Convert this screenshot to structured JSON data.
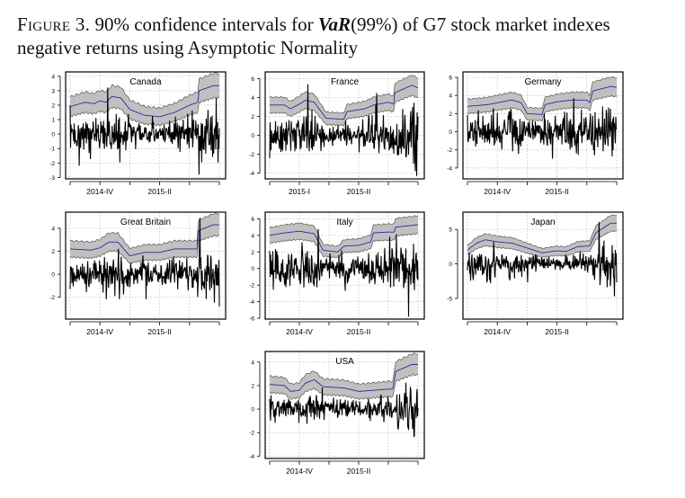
{
  "caption": {
    "figure_label": "Figure 3.",
    "text_before": "90% confidence intervals for ",
    "var_label": "VaR",
    "text_after": "(99%) of G7 stock market indexes negative returns using Asymptotic Normality"
  },
  "colors": {
    "band": "#c0c0c0",
    "band_edge": "#555555",
    "var_line": "#2b2b9e",
    "returns": "#000000",
    "grid": "#bbbbbb"
  },
  "chart_data": [
    {
      "type": "line",
      "title": "Canada",
      "ylim": [
        -3.1,
        4.3
      ],
      "yticks": [
        -3,
        -2,
        -1,
        0,
        1,
        2,
        3,
        4
      ],
      "xticks": [
        0,
        1,
        2,
        3,
        4,
        5
      ],
      "xtick_labels": [
        "",
        "2014-IV",
        "",
        "2015-II",
        "",
        ""
      ],
      "var": [
        [
          0,
          1.9
        ],
        [
          0.5,
          2.2
        ],
        [
          0.8,
          2.1
        ],
        [
          1.0,
          2.3
        ],
        [
          1.2,
          2.2
        ],
        [
          1.4,
          2.6
        ],
        [
          1.7,
          2.5
        ],
        [
          2.0,
          1.7
        ],
        [
          2.5,
          1.3
        ],
        [
          3.0,
          1.2
        ],
        [
          3.5,
          1.5
        ],
        [
          4.0,
          2.0
        ],
        [
          4.28,
          2.2
        ],
        [
          4.32,
          3.0
        ],
        [
          4.8,
          3.35
        ],
        [
          5,
          3.35
        ]
      ]
    },
    {
      "type": "line",
      "title": "France",
      "ylim": [
        -4.6,
        6.7
      ],
      "yticks": [
        -4,
        -2,
        0,
        2,
        4,
        6
      ],
      "xticks": [
        0,
        1,
        2,
        3,
        4,
        5
      ],
      "xtick_labels": [
        "",
        "2015-I",
        "",
        "2015-II",
        "",
        ""
      ],
      "var": [
        [
          0,
          3.2
        ],
        [
          0.5,
          3.2
        ],
        [
          0.7,
          2.8
        ],
        [
          1.0,
          3.3
        ],
        [
          1.2,
          3.7
        ],
        [
          1.5,
          3.5
        ],
        [
          1.9,
          1.8
        ],
        [
          2.5,
          1.7
        ],
        [
          2.6,
          2.5
        ],
        [
          3.2,
          2.8
        ],
        [
          3.5,
          3.2
        ],
        [
          4.0,
          3.5
        ],
        [
          4.18,
          3.3
        ],
        [
          4.22,
          4.5
        ],
        [
          4.8,
          5.3
        ],
        [
          5,
          5.0
        ]
      ]
    },
    {
      "type": "line",
      "title": "Germany",
      "ylim": [
        -5.2,
        6.6
      ],
      "yticks": [
        -4,
        -2,
        0,
        2,
        4,
        6
      ],
      "xticks": [
        0,
        1,
        2,
        3,
        4,
        5
      ],
      "xtick_labels": [
        "",
        "2014-IV",
        "",
        "2015-II",
        "",
        ""
      ],
      "var": [
        [
          0,
          2.8
        ],
        [
          0.7,
          3.0
        ],
        [
          1.0,
          3.2
        ],
        [
          1.5,
          3.5
        ],
        [
          1.8,
          3.2
        ],
        [
          2.0,
          2.0
        ],
        [
          2.5,
          1.9
        ],
        [
          2.6,
          3.0
        ],
        [
          3.0,
          3.3
        ],
        [
          3.5,
          3.5
        ],
        [
          4.0,
          3.5
        ],
        [
          4.1,
          3.2
        ],
        [
          4.2,
          4.5
        ],
        [
          4.8,
          5.0
        ],
        [
          5,
          4.9
        ]
      ]
    },
    {
      "type": "line",
      "title": "Great Britain",
      "ylim": [
        -3.9,
        5.4
      ],
      "yticks": [
        -2,
        0,
        2,
        4
      ],
      "xticks": [
        0,
        1,
        2,
        3,
        4,
        5
      ],
      "xtick_labels": [
        "",
        "2014-IV",
        "",
        "2015-II",
        "",
        ""
      ],
      "var": [
        [
          0,
          2.2
        ],
        [
          0.7,
          2.1
        ],
        [
          1.0,
          2.3
        ],
        [
          1.3,
          2.8
        ],
        [
          1.6,
          2.8
        ],
        [
          2.0,
          1.6
        ],
        [
          2.5,
          1.9
        ],
        [
          3.0,
          1.9
        ],
        [
          3.5,
          2.2
        ],
        [
          4.0,
          2.2
        ],
        [
          4.25,
          2.2
        ],
        [
          4.3,
          3.8
        ],
        [
          4.8,
          4.3
        ],
        [
          5,
          4.3
        ]
      ]
    },
    {
      "type": "line",
      "title": "Italy",
      "ylim": [
        -6.1,
        6.8
      ],
      "yticks": [
        -6,
        -4,
        -2,
        0,
        2,
        4,
        6
      ],
      "xticks": [
        0,
        1,
        2,
        3,
        4,
        5
      ],
      "xtick_labels": [
        "",
        "2014-IV",
        "",
        "2015-II",
        "",
        ""
      ],
      "var": [
        [
          0,
          4.0
        ],
        [
          0.5,
          4.3
        ],
        [
          1.0,
          4.5
        ],
        [
          1.5,
          4.2
        ],
        [
          1.8,
          2.2
        ],
        [
          2.3,
          2.0
        ],
        [
          2.5,
          2.7
        ],
        [
          3.0,
          2.8
        ],
        [
          3.4,
          3.2
        ],
        [
          3.5,
          4.3
        ],
        [
          4.0,
          4.4
        ],
        [
          4.2,
          4.4
        ],
        [
          4.25,
          5.0
        ],
        [
          4.8,
          5.2
        ],
        [
          5,
          5.3
        ]
      ]
    },
    {
      "type": "line",
      "title": "Japan",
      "ylim": [
        -8.0,
        7.5
      ],
      "yticks": [
        -5,
        0,
        5
      ],
      "xticks": [
        0,
        1,
        2,
        3,
        4,
        5
      ],
      "xtick_labels": [
        "",
        "2014-IV",
        "",
        "2015-II",
        "",
        ""
      ],
      "var": [
        [
          0,
          2.0
        ],
        [
          0.3,
          3.0
        ],
        [
          0.6,
          3.5
        ],
        [
          1.0,
          3.2
        ],
        [
          1.5,
          3.0
        ],
        [
          2.0,
          2.3
        ],
        [
          2.5,
          1.6
        ],
        [
          3.0,
          1.9
        ],
        [
          3.3,
          1.8
        ],
        [
          3.7,
          2.5
        ],
        [
          4.1,
          2.6
        ],
        [
          4.3,
          4.5
        ],
        [
          4.8,
          5.9
        ],
        [
          5,
          5.9
        ]
      ]
    },
    {
      "type": "line",
      "title": "USA",
      "ylim": [
        -4.2,
        4.9
      ],
      "yticks": [
        -4,
        -2,
        0,
        2,
        4
      ],
      "xticks": [
        0,
        1,
        2,
        3,
        4,
        5
      ],
      "xtick_labels": [
        "",
        "2014-IV",
        "",
        "2015-II",
        "",
        ""
      ],
      "var": [
        [
          0,
          2.1
        ],
        [
          0.5,
          2.0
        ],
        [
          0.7,
          1.5
        ],
        [
          1.0,
          1.6
        ],
        [
          1.2,
          2.2
        ],
        [
          1.5,
          2.5
        ],
        [
          1.8,
          1.9
        ],
        [
          2.5,
          1.8
        ],
        [
          3.0,
          1.5
        ],
        [
          3.5,
          1.6
        ],
        [
          4.0,
          1.7
        ],
        [
          4.15,
          1.7
        ],
        [
          4.25,
          3.2
        ],
        [
          4.8,
          3.8
        ],
        [
          5,
          3.8
        ]
      ]
    }
  ]
}
